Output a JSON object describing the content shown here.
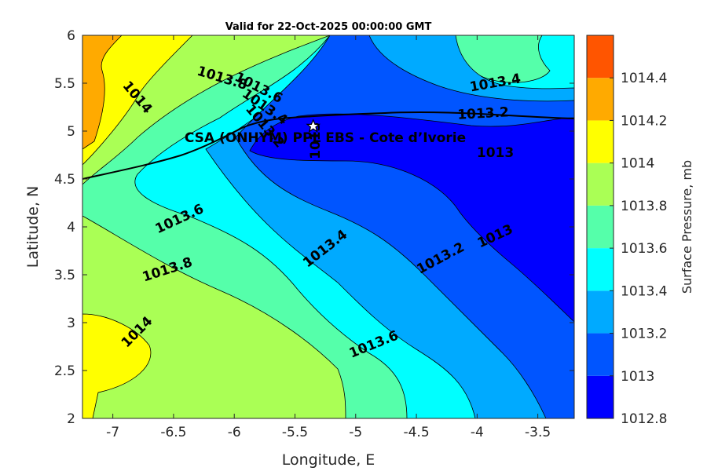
{
  "chart_data": {
    "type": "contour",
    "title": "Valid for 22-Oct-2025 00:00:00 GMT",
    "xlabel": "Longitude, E",
    "ylabel": "Latitude, N",
    "xlim": [
      -7.25,
      -3.2
    ],
    "ylim": [
      2,
      6
    ],
    "xticks": [
      -7,
      -6.5,
      -6,
      -5.5,
      -5,
      -4.5,
      -4,
      -3.5
    ],
    "yticks": [
      2,
      2.5,
      3,
      3.5,
      4,
      4.5,
      5,
      5.5,
      6
    ],
    "colorbar": {
      "label": "Surface Pressure, mb",
      "levels": [
        1012.8,
        1013,
        1013.2,
        1013.4,
        1013.6,
        1013.8,
        1014,
        1014.2,
        1014.4
      ],
      "colors": [
        "#0000ff",
        "#0055ff",
        "#00aaff",
        "#00ffff",
        "#55ffaa",
        "#aaff55",
        "#ffff00",
        "#ffaa00",
        "#ff5500"
      ]
    },
    "site": {
      "label": "CSA (ONHYM) PPL EBS  - Cote d’Ivorie",
      "lon": -5.35,
      "lat": 5.05
    },
    "contour_labels": [
      {
        "text": "1014",
        "lon": -6.8,
        "lat": 5.35,
        "angle": -50
      },
      {
        "text": "1013.8",
        "lon": -6.1,
        "lat": 5.55,
        "angle": -17
      },
      {
        "text": "1013.6",
        "lon": -5.8,
        "lat": 5.45,
        "angle": -27
      },
      {
        "text": "1013.4",
        "lon": -5.75,
        "lat": 5.25,
        "angle": -35
      },
      {
        "text": "1013.2",
        "lon": -5.75,
        "lat": 5.05,
        "angle": -50
      },
      {
        "text": "1013",
        "lon": -5.33,
        "lat": 4.9,
        "angle": 90
      },
      {
        "text": "1013.4",
        "lon": -3.85,
        "lat": 5.5,
        "angle": 10
      },
      {
        "text": "1013.2",
        "lon": -3.95,
        "lat": 5.18,
        "angle": 3
      },
      {
        "text": "1013",
        "lon": -3.85,
        "lat": 4.77,
        "angle": 0
      },
      {
        "text": "1013.6",
        "lon": -6.45,
        "lat": 4.08,
        "angle": 25
      },
      {
        "text": "1013.4",
        "lon": -5.25,
        "lat": 3.77,
        "angle": 38
      },
      {
        "text": "1013.2",
        "lon": -4.3,
        "lat": 3.67,
        "angle": 28
      },
      {
        "text": "1013",
        "lon": -3.85,
        "lat": 3.9,
        "angle": 25
      },
      {
        "text": "1013.8",
        "lon": -6.55,
        "lat": 3.55,
        "angle": 18
      },
      {
        "text": "1014",
        "lon": -6.8,
        "lat": 2.9,
        "angle": 45
      },
      {
        "text": "1013.6",
        "lon": -4.85,
        "lat": 2.77,
        "angle": 22
      }
    ]
  }
}
